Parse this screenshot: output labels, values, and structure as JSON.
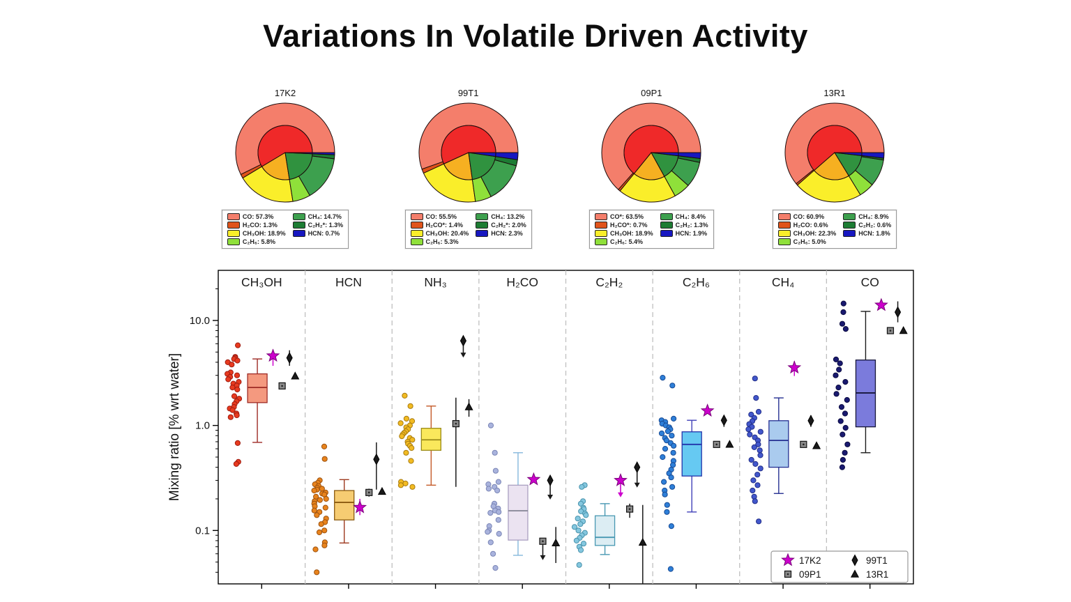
{
  "title": "Variations In Volatile Driven Activity",
  "inner_palette": {
    "red": "#EF2929",
    "orange": "#F6B021",
    "green": "#30923F",
    "navy": "#1717C0"
  },
  "pies": [
    {
      "name": "17K2",
      "slices": [
        {
          "key": "CO",
          "label": "CO: 57.3%",
          "pct": 57.3,
          "color": "#F47E6B"
        },
        {
          "key": "H2CO",
          "label": "H₂CO: 1.3%",
          "pct": 1.3,
          "color": "#E0531A"
        },
        {
          "key": "CH3OH",
          "label": "CH₃OH: 18.9%",
          "pct": 18.9,
          "color": "#FAEE2A"
        },
        {
          "key": "C2H6",
          "label": "C₂H₆: 5.8%",
          "pct": 5.8,
          "color": "#8FE03A"
        },
        {
          "key": "CH4",
          "label": "CH₄: 14.7%",
          "pct": 14.7,
          "color": "#3DA04E"
        },
        {
          "key": "C2H2",
          "label": "C₂H₂*: 1.3%",
          "pct": 1.3,
          "color": "#1D7C33"
        },
        {
          "key": "HCN",
          "label": "HCN: 0.7%",
          "pct": 0.7,
          "color": "#1717C0"
        }
      ]
    },
    {
      "name": "99T1",
      "slices": [
        {
          "key": "CO",
          "label": "CO: 55.5%",
          "pct": 55.5,
          "color": "#F47E6B"
        },
        {
          "key": "H2CO",
          "label": "H₂CO*: 1.4%",
          "pct": 1.4,
          "color": "#E0531A"
        },
        {
          "key": "CH3OH",
          "label": "CH₃OH: 20.4%",
          "pct": 20.4,
          "color": "#FAEE2A"
        },
        {
          "key": "C2H6",
          "label": "C₂H₆: 5.3%",
          "pct": 5.3,
          "color": "#8FE03A"
        },
        {
          "key": "CH4",
          "label": "CH₄: 13.2%",
          "pct": 13.2,
          "color": "#3DA04E"
        },
        {
          "key": "C2H2",
          "label": "C₂H₂*: 2.0%",
          "pct": 2.0,
          "color": "#1D7C33"
        },
        {
          "key": "HCN",
          "label": "HCN: 2.3%",
          "pct": 2.3,
          "color": "#1717C0"
        }
      ]
    },
    {
      "name": "09P1",
      "slices": [
        {
          "key": "CO",
          "label": "CO*: 63.5%",
          "pct": 63.5,
          "color": "#F47E6B"
        },
        {
          "key": "H2CO",
          "label": "H₂CO*: 0.7%",
          "pct": 0.7,
          "color": "#E0531A"
        },
        {
          "key": "CH3OH",
          "label": "CH₃OH: 18.9%",
          "pct": 18.9,
          "color": "#FAEE2A"
        },
        {
          "key": "C2H6",
          "label": "C₂H₆: 5.4%",
          "pct": 5.4,
          "color": "#8FE03A"
        },
        {
          "key": "CH4",
          "label": "CH₄: 8.4%",
          "pct": 8.4,
          "color": "#3DA04E"
        },
        {
          "key": "C2H2",
          "label": "C₂H₂: 1.3%",
          "pct": 1.3,
          "color": "#1D7C33"
        },
        {
          "key": "HCN",
          "label": "HCN: 1.9%",
          "pct": 1.9,
          "color": "#1717C0"
        }
      ]
    },
    {
      "name": "13R1",
      "slices": [
        {
          "key": "CO",
          "label": "CO: 60.9%",
          "pct": 60.9,
          "color": "#F47E6B"
        },
        {
          "key": "H2CO",
          "label": "H₂CO: 0.6%",
          "pct": 0.6,
          "color": "#E0531A"
        },
        {
          "key": "CH3OH",
          "label": "CH₃OH: 22.3%",
          "pct": 22.3,
          "color": "#FAEE2A"
        },
        {
          "key": "C2H6",
          "label": "C₂H₆: 5.0%",
          "pct": 5.0,
          "color": "#8FE03A"
        },
        {
          "key": "CH4",
          "label": "CH₄: 8.9%",
          "pct": 8.9,
          "color": "#3DA04E"
        },
        {
          "key": "C2H2",
          "label": "C₂H₂: 0.6%",
          "pct": 0.6,
          "color": "#1D7C33"
        },
        {
          "key": "HCN",
          "label": "HCN: 1.8%",
          "pct": 1.8,
          "color": "#1717C0"
        }
      ]
    }
  ],
  "chart_data": {
    "type": "box",
    "ylabel": "Mixing ratio [% wrt water]",
    "ylim": [
      0.031,
      30
    ],
    "yscale": "log",
    "yticks": [
      {
        "v": 10,
        "label": "10.0"
      },
      {
        "v": 1,
        "label": "1.0"
      },
      {
        "v": 0.1,
        "label": "0.1"
      }
    ],
    "legend": {
      "position": "lower right",
      "entries": [
        {
          "comet": "17K2",
          "marker": "star",
          "color": "#CC00CC"
        },
        {
          "comet": "09P1",
          "marker": "square",
          "color": "#8a8a8a"
        },
        {
          "comet": "99T1",
          "marker": "diamond",
          "color": "#1a1a1a"
        },
        {
          "comet": "13R1",
          "marker": "triangle",
          "color": "#1a1a1a"
        }
      ]
    },
    "panels": [
      {
        "label": "CH₃OH",
        "colors": {
          "scatter": "#E83A1F",
          "scatter_edge": "#9E1C10",
          "box_fill": "#F4997F",
          "box_edge": "#9E2B25",
          "whisker": "#9E2B25",
          "median": "#9E2B25"
        },
        "scatter": [
          5.8,
          4.5,
          4.4,
          4.3,
          4.15,
          4.0,
          3.8,
          3.2,
          3.1,
          3.0,
          2.9,
          2.75,
          2.6,
          2.5,
          2.4,
          2.3,
          2.2,
          1.9,
          1.8,
          1.7,
          1.6,
          1.5,
          1.45,
          1.4,
          1.3,
          1.25,
          1.2,
          0.68,
          0.45,
          0.43
        ],
        "box": {
          "lo": 0.69,
          "q1": 1.65,
          "med": 2.3,
          "q3": 3.1,
          "hi": 4.3
        },
        "markers": [
          {
            "comet": "17K2",
            "value": 4.6,
            "err": [
              3.7,
              5.3
            ]
          },
          {
            "comet": "09P1",
            "value": 2.38
          },
          {
            "comet": "99T1",
            "value": 4.4,
            "err": [
              3.7,
              5.2
            ]
          },
          {
            "comet": "13R1",
            "value": 2.95
          }
        ]
      },
      {
        "label": "HCN",
        "colors": {
          "scatter": "#E8831C",
          "scatter_edge": "#9C5210",
          "box_fill": "#F6CC72",
          "box_edge": "#8A5A10",
          "whisker": "#9E3A20",
          "median": "#8A5A10"
        },
        "scatter": [
          0.63,
          0.48,
          0.3,
          0.285,
          0.275,
          0.265,
          0.255,
          0.25,
          0.245,
          0.24,
          0.23,
          0.225,
          0.22,
          0.21,
          0.2,
          0.195,
          0.19,
          0.18,
          0.17,
          0.165,
          0.155,
          0.15,
          0.14,
          0.13,
          0.12,
          0.115,
          0.1,
          0.096,
          0.077,
          0.072,
          0.066,
          0.04
        ],
        "box": {
          "lo": 0.076,
          "q1": 0.126,
          "med": 0.185,
          "q3": 0.24,
          "hi": 0.305
        },
        "markers": [
          {
            "comet": "17K2",
            "value": 0.166,
            "err": [
              0.14,
              0.2
            ]
          },
          {
            "comet": "09P1",
            "value": 0.23,
            "err": [
              0.21,
              0.25
            ]
          },
          {
            "comet": "99T1",
            "value": 0.476,
            "err": [
              0.245,
              0.69
            ]
          },
          {
            "comet": "13R1",
            "value": 0.235
          }
        ]
      },
      {
        "label": "NH₃",
        "colors": {
          "scatter": "#F2BB22",
          "scatter_edge": "#A87B10",
          "box_fill": "#FAE85C",
          "box_edge": "#9A8A18",
          "whisker": "#C45A28",
          "median": "#9A8A18"
        },
        "scatter": [
          1.92,
          1.53,
          1.16,
          1.1,
          1.05,
          1.0,
          0.96,
          0.92,
          0.88,
          0.85,
          0.82,
          0.79,
          0.76,
          0.73,
          0.7,
          0.67,
          0.64,
          0.61,
          0.55,
          0.46,
          0.29,
          0.28,
          0.27,
          0.26
        ],
        "box": {
          "lo": 0.27,
          "q1": 0.58,
          "med": 0.73,
          "q3": 0.94,
          "hi": 1.53
        },
        "markers": [
          {
            "comet": "09P1",
            "value": 1.04,
            "err": [
              0.26,
              1.84
            ]
          },
          {
            "comet": "99T1",
            "value": 6.4,
            "arrow_to": 4.5
          },
          {
            "comet": "13R1",
            "value": 1.5,
            "err": [
              1.21,
              1.78
            ]
          }
        ]
      },
      {
        "label": "H₂CO",
        "colors": {
          "scatter": "#A9B3DD",
          "scatter_edge": "#7A85B5",
          "box_fill": "#EBE3F1",
          "box_edge": "#A99FC0",
          "whisker": "#85B8DC",
          "median": "#8A8A9A"
        },
        "scatter": [
          1.0,
          0.55,
          0.37,
          0.29,
          0.275,
          0.26,
          0.25,
          0.24,
          0.18,
          0.17,
          0.162,
          0.155,
          0.15,
          0.147,
          0.126,
          0.11,
          0.1,
          0.097,
          0.093,
          0.077,
          0.06,
          0.044
        ],
        "box": {
          "lo": 0.058,
          "q1": 0.081,
          "med": 0.154,
          "q3": 0.27,
          "hi": 0.55
        },
        "markers": [
          {
            "comet": "17K2",
            "value": 0.306
          },
          {
            "comet": "09P1",
            "value": 0.079,
            "arrow_to": 0.053
          },
          {
            "comet": "99T1",
            "value": 0.3,
            "arrow_to": 0.2
          },
          {
            "comet": "13R1",
            "value": 0.076,
            "err": [
              0.049,
              0.108
            ]
          }
        ]
      },
      {
        "label": "C₂H₂",
        "colors": {
          "scatter": "#84C7DF",
          "scatter_edge": "#4A93AC",
          "box_fill": "#DCEDF3",
          "box_edge": "#4898B2",
          "whisker": "#4898B2",
          "median": "#4898B2"
        },
        "scatter": [
          0.27,
          0.26,
          0.19,
          0.18,
          0.165,
          0.16,
          0.152,
          0.145,
          0.14,
          0.13,
          0.122,
          0.115,
          0.108,
          0.1,
          0.095,
          0.09,
          0.085,
          0.08,
          0.075,
          0.07,
          0.065,
          0.047
        ],
        "box": {
          "lo": 0.059,
          "q1": 0.072,
          "med": 0.086,
          "q3": 0.138,
          "hi": 0.18
        },
        "markers": [
          {
            "comet": "17K2",
            "value": 0.3,
            "arrow_to": 0.21
          },
          {
            "comet": "09P1",
            "value": 0.16,
            "err": [
              0.132,
              0.18
            ]
          },
          {
            "comet": "99T1",
            "value": 0.4,
            "arrow_to": 0.26
          },
          {
            "comet": "13R1",
            "value": 0.077,
            "err": [
              0.031,
              0.175
            ]
          }
        ]
      },
      {
        "label": "C₂H₆",
        "colors": {
          "scatter": "#2E7FD8",
          "scatter_edge": "#174A94",
          "box_fill": "#66C9F2",
          "box_edge": "#2233AA",
          "whisker": "#4040B8",
          "median": "#2233AA"
        },
        "scatter": [
          2.85,
          2.4,
          1.16,
          1.12,
          1.08,
          1.04,
          1.0,
          0.96,
          0.92,
          0.88,
          0.84,
          0.8,
          0.76,
          0.72,
          0.68,
          0.64,
          0.6,
          0.55,
          0.5,
          0.46,
          0.42,
          0.38,
          0.35,
          0.32,
          0.29,
          0.26,
          0.24,
          0.22,
          0.175,
          0.15,
          0.11,
          0.043
        ],
        "box": {
          "lo": 0.15,
          "q1": 0.33,
          "med": 0.66,
          "q3": 0.87,
          "hi": 1.12
        },
        "markers": [
          {
            "comet": "17K2",
            "value": 1.38
          },
          {
            "comet": "09P1",
            "value": 0.66
          },
          {
            "comet": "99T1",
            "value": 1.12,
            "err": [
              0.97,
              1.25
            ]
          },
          {
            "comet": "13R1",
            "value": 0.66
          }
        ]
      },
      {
        "label": "CH₄",
        "colors": {
          "scatter": "#4257CC",
          "scatter_edge": "#222E88",
          "box_fill": "#AACBEE",
          "box_edge": "#253092",
          "whisker": "#253092",
          "median": "#253092"
        },
        "scatter": [
          2.8,
          1.83,
          1.35,
          1.27,
          1.18,
          1.1,
          1.03,
          0.97,
          0.92,
          0.87,
          0.82,
          0.77,
          0.72,
          0.66,
          0.62,
          0.58,
          0.52,
          0.47,
          0.43,
          0.39,
          0.34,
          0.3,
          0.27,
          0.24,
          0.21,
          0.19,
          0.122
        ],
        "box": {
          "lo": 0.225,
          "q1": 0.4,
          "med": 0.72,
          "q3": 1.11,
          "hi": 1.83
        },
        "markers": [
          {
            "comet": "17K2",
            "value": 3.55,
            "err": [
              2.96,
              4.1
            ]
          },
          {
            "comet": "09P1",
            "value": 0.66
          },
          {
            "comet": "99T1",
            "value": 1.11,
            "err": [
              0.97,
              1.25
            ]
          },
          {
            "comet": "13R1",
            "value": 0.64
          }
        ]
      },
      {
        "label": "CO",
        "colors": {
          "scatter": "#1A1A70",
          "scatter_edge": "#0A0A40",
          "box_fill": "#7B7BDC",
          "box_edge": "#16163A",
          "whisker": "#1a1a1a",
          "median": "#16163A"
        },
        "scatter": [
          14.5,
          12.0,
          9.3,
          8.3,
          4.25,
          3.9,
          3.4,
          3.0,
          2.6,
          2.3,
          2.0,
          1.75,
          1.5,
          1.3,
          1.1,
          0.95,
          0.82,
          0.66,
          0.55,
          0.47,
          0.4
        ],
        "box": {
          "lo": 0.55,
          "q1": 0.97,
          "med": 2.04,
          "q3": 4.2,
          "hi": 12.2
        },
        "markers": [
          {
            "comet": "17K2",
            "value": 14.0
          },
          {
            "comet": "09P1",
            "value": 8.0
          },
          {
            "comet": "99T1",
            "value": 12.0,
            "err": [
              9.6,
              15.2
            ]
          },
          {
            "comet": "13R1",
            "value": 8.0
          }
        ]
      }
    ]
  }
}
